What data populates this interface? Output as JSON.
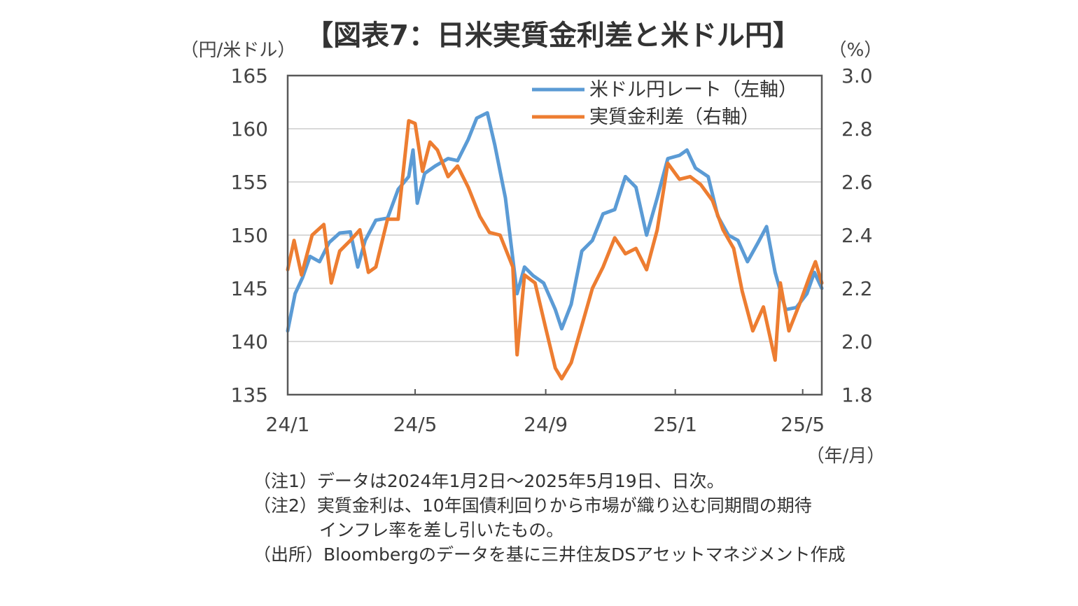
{
  "chart_data": {
    "type": "line",
    "title": "【図表7：日米実質金利差と米ドル円】",
    "y_left_unit": "（円/米ドル）",
    "y_right_unit": "（%）",
    "x_unit": "（年/月）",
    "x_ticks": [
      "24/1",
      "24/5",
      "24/9",
      "25/1",
      "25/5"
    ],
    "y_left_ticks": [
      "135",
      "140",
      "145",
      "150",
      "155",
      "160",
      "165"
    ],
    "y_right_ticks": [
      "1.8",
      "2.0",
      "2.2",
      "2.4",
      "2.6",
      "2.8",
      "3.0"
    ],
    "y_left_range": [
      135,
      165
    ],
    "y_right_range": [
      1.8,
      3.0
    ],
    "x_range": [
      "2024-01-02",
      "2025-05-19"
    ],
    "grid": true,
    "legend_position": "top-right",
    "series": [
      {
        "name": "米ドル円レート（左軸）",
        "axis": "left",
        "color": "#5B9BD5",
        "points": [
          [
            "2024-01-02",
            141.0
          ],
          [
            "2024-01-09",
            144.5
          ],
          [
            "2024-01-16",
            146.0
          ],
          [
            "2024-01-23",
            148.0
          ],
          [
            "2024-02-01",
            147.5
          ],
          [
            "2024-02-10",
            149.3
          ],
          [
            "2024-02-20",
            150.2
          ],
          [
            "2024-03-01",
            150.3
          ],
          [
            "2024-03-08",
            147.0
          ],
          [
            "2024-03-15",
            149.5
          ],
          [
            "2024-03-25",
            151.4
          ],
          [
            "2024-04-05",
            151.6
          ],
          [
            "2024-04-15",
            154.3
          ],
          [
            "2024-04-25",
            155.5
          ],
          [
            "2024-04-29",
            158.0
          ],
          [
            "2024-05-03",
            153.0
          ],
          [
            "2024-05-10",
            155.8
          ],
          [
            "2024-05-20",
            156.5
          ],
          [
            "2024-06-01",
            157.2
          ],
          [
            "2024-06-10",
            157.0
          ],
          [
            "2024-06-20",
            159.0
          ],
          [
            "2024-06-28",
            161.0
          ],
          [
            "2024-07-08",
            161.5
          ],
          [
            "2024-07-15",
            158.5
          ],
          [
            "2024-07-25",
            153.5
          ],
          [
            "2024-08-05",
            144.5
          ],
          [
            "2024-08-12",
            147.0
          ],
          [
            "2024-08-20",
            146.2
          ],
          [
            "2024-08-30",
            145.5
          ],
          [
            "2024-09-10",
            143.0
          ],
          [
            "2024-09-16",
            141.2
          ],
          [
            "2024-09-25",
            143.5
          ],
          [
            "2024-10-05",
            148.5
          ],
          [
            "2024-10-15",
            149.5
          ],
          [
            "2024-10-25",
            152.0
          ],
          [
            "2024-11-05",
            152.4
          ],
          [
            "2024-11-15",
            155.5
          ],
          [
            "2024-11-25",
            154.5
          ],
          [
            "2024-12-05",
            150.0
          ],
          [
            "2024-12-15",
            153.5
          ],
          [
            "2024-12-25",
            157.2
          ],
          [
            "2025-01-05",
            157.5
          ],
          [
            "2025-01-12",
            158.0
          ],
          [
            "2025-01-20",
            156.3
          ],
          [
            "2025-02-01",
            155.5
          ],
          [
            "2025-02-10",
            151.8
          ],
          [
            "2025-02-20",
            150.0
          ],
          [
            "2025-03-01",
            149.5
          ],
          [
            "2025-03-10",
            147.5
          ],
          [
            "2025-03-20",
            149.3
          ],
          [
            "2025-03-28",
            150.8
          ],
          [
            "2025-04-05",
            146.5
          ],
          [
            "2025-04-15",
            143.0
          ],
          [
            "2025-04-25",
            143.2
          ],
          [
            "2025-05-05",
            144.5
          ],
          [
            "2025-05-12",
            146.5
          ],
          [
            "2025-05-19",
            145.0
          ]
        ]
      },
      {
        "name": "実質金利差（右軸）",
        "axis": "right",
        "color": "#ED7D31",
        "points": [
          [
            "2024-01-02",
            2.27
          ],
          [
            "2024-01-08",
            2.38
          ],
          [
            "2024-01-15",
            2.25
          ],
          [
            "2024-01-25",
            2.4
          ],
          [
            "2024-02-05",
            2.44
          ],
          [
            "2024-02-12",
            2.22
          ],
          [
            "2024-02-20",
            2.34
          ],
          [
            "2024-03-01",
            2.38
          ],
          [
            "2024-03-10",
            2.42
          ],
          [
            "2024-03-18",
            2.26
          ],
          [
            "2024-03-25",
            2.28
          ],
          [
            "2024-04-05",
            2.46
          ],
          [
            "2024-04-15",
            2.46
          ],
          [
            "2024-04-25",
            2.83
          ],
          [
            "2024-05-01",
            2.82
          ],
          [
            "2024-05-08",
            2.64
          ],
          [
            "2024-05-15",
            2.75
          ],
          [
            "2024-05-22",
            2.72
          ],
          [
            "2024-06-01",
            2.62
          ],
          [
            "2024-06-10",
            2.66
          ],
          [
            "2024-06-20",
            2.58
          ],
          [
            "2024-07-01",
            2.47
          ],
          [
            "2024-07-10",
            2.41
          ],
          [
            "2024-07-20",
            2.4
          ],
          [
            "2024-08-01",
            2.28
          ],
          [
            "2024-08-05",
            1.95
          ],
          [
            "2024-08-12",
            2.25
          ],
          [
            "2024-08-22",
            2.22
          ],
          [
            "2024-09-01",
            2.05
          ],
          [
            "2024-09-10",
            1.9
          ],
          [
            "2024-09-16",
            1.86
          ],
          [
            "2024-09-25",
            1.92
          ],
          [
            "2024-10-05",
            2.06
          ],
          [
            "2024-10-15",
            2.2
          ],
          [
            "2024-10-25",
            2.28
          ],
          [
            "2024-11-05",
            2.39
          ],
          [
            "2024-11-15",
            2.33
          ],
          [
            "2024-11-25",
            2.35
          ],
          [
            "2024-12-05",
            2.27
          ],
          [
            "2024-12-15",
            2.42
          ],
          [
            "2024-12-25",
            2.67
          ],
          [
            "2025-01-05",
            2.61
          ],
          [
            "2025-01-15",
            2.62
          ],
          [
            "2025-01-25",
            2.59
          ],
          [
            "2025-02-05",
            2.53
          ],
          [
            "2025-02-15",
            2.42
          ],
          [
            "2025-02-25",
            2.35
          ],
          [
            "2025-03-05",
            2.19
          ],
          [
            "2025-03-15",
            2.04
          ],
          [
            "2025-03-25",
            2.13
          ],
          [
            "2025-04-05",
            1.93
          ],
          [
            "2025-04-10",
            2.22
          ],
          [
            "2025-04-18",
            2.04
          ],
          [
            "2025-04-28",
            2.14
          ],
          [
            "2025-05-08",
            2.25
          ],
          [
            "2025-05-13",
            2.3
          ],
          [
            "2025-05-19",
            2.22
          ]
        ]
      }
    ]
  },
  "notes": {
    "note1": "（注1）データは2024年1月2日～2025年5月19日、日次。",
    "note2": "（注2）実質金利は、10年国債利回りから市場が織り込む同期間の期待",
    "note2_cont": "インフレ率を差し引いたもの。",
    "source": "（出所）Bloombergのデータを基に三井住友DSアセットマネジメント作成"
  }
}
